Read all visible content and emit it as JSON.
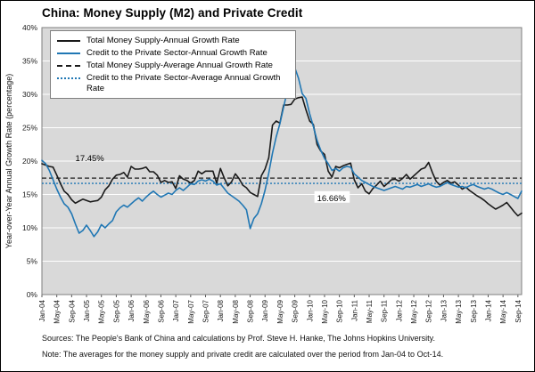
{
  "figure": {
    "footer": {
      "sources": "Sources: The People's Bank of China and calculations by Prof. Steve H. Hanke,  The Johns Hopkins University.",
      "note": "Note: The averages for the money supply and private credit are calculated over the period from Jan-04 to Oct-14."
    }
  },
  "chart_data": {
    "type": "line",
    "title": "China: Money Supply (M2) and Private Credit",
    "ylabel": "Year-over-Year Annual Growth Rate (percentage)",
    "xlabel": "",
    "ylim": [
      0,
      40
    ],
    "ytick_step": 5,
    "ytick_suffix": "%",
    "grid": "horizontal-white-on-gray",
    "legend_position": "top-left",
    "x_tick_step": 4,
    "x_tick_labels": [
      "Jan-04",
      "May-04",
      "Sep-04",
      "Jan-05",
      "May-05",
      "Sep-05",
      "Jan-06",
      "May-06",
      "Sep-06",
      "Jan-07",
      "May-07",
      "Sep-07",
      "Jan-08",
      "May-08",
      "Sep-08",
      "Jan-09",
      "May-09",
      "Sep-09",
      "Jan-10",
      "May-10",
      "Sep-10",
      "Jan-11",
      "May-11",
      "Sep-11",
      "Jan-12",
      "May-12",
      "Sep-12",
      "Jan-13",
      "May-13",
      "Sep-13",
      "Jan-14",
      "May-14",
      "Sep-14"
    ],
    "legend": [
      "Total Money Supply-Annual Growth Rate",
      "Credit to the Private Sector-Annual Growth Rate",
      "Total Money Supply-Average Annual Growth Rate",
      "Credit to the Private Sector-Average Annual Growth Rate"
    ],
    "series": [
      {
        "name": "Total Money Supply-Annual Growth Rate",
        "color": "#1a1a1a",
        "style": "solid",
        "values": [
          19.6,
          19.4,
          19.2,
          19.1,
          17.9,
          16.6,
          15.5,
          15.0,
          14.2,
          13.7,
          14.0,
          14.3,
          14.1,
          13.9,
          14.0,
          14.1,
          14.6,
          15.7,
          16.3,
          17.3,
          17.9,
          18.0,
          18.3,
          17.6,
          19.2,
          18.8,
          18.8,
          18.9,
          19.1,
          18.4,
          18.4,
          17.9,
          16.8,
          17.1,
          16.8,
          16.9,
          15.9,
          17.8,
          17.3,
          17.1,
          16.7,
          17.1,
          18.5,
          18.1,
          18.5,
          18.5,
          18.5,
          16.7,
          18.9,
          17.5,
          16.3,
          16.9,
          18.1,
          17.4,
          16.4,
          16.0,
          15.3,
          15.0,
          14.7,
          17.8,
          18.8,
          20.5,
          25.4,
          26.0,
          25.7,
          28.4,
          28.4,
          28.5,
          29.3,
          29.5,
          29.6,
          27.7,
          26.0,
          25.5,
          22.5,
          21.5,
          21.0,
          18.5,
          17.6,
          19.2,
          19.0,
          19.3,
          19.5,
          19.7,
          17.2,
          16.0,
          16.6,
          15.5,
          15.1,
          15.9,
          16.4,
          17.0,
          16.2,
          16.7,
          17.2,
          17.3,
          17.0,
          17.4,
          18.0,
          17.3,
          17.8,
          18.3,
          18.8,
          19.0,
          19.8,
          18.3,
          17.0,
          16.4,
          16.8,
          17.1,
          16.7,
          16.9,
          16.4,
          15.8,
          16.1,
          15.6,
          15.2,
          14.8,
          14.5,
          14.1,
          13.6,
          13.2,
          12.8,
          13.1,
          13.4,
          13.8,
          13.1,
          12.4,
          11.8,
          12.2
        ]
      },
      {
        "name": "Credit to the Private Sector-Annual Growth Rate",
        "color": "#2077b4",
        "style": "solid",
        "values": [
          20.1,
          19.6,
          18.6,
          17.2,
          15.8,
          14.6,
          13.6,
          13.1,
          12.1,
          10.6,
          9.2,
          9.6,
          10.4,
          9.6,
          8.7,
          9.4,
          10.5,
          10.0,
          10.6,
          11.1,
          12.4,
          13.0,
          13.4,
          13.1,
          13.6,
          14.1,
          14.5,
          14.0,
          14.6,
          15.1,
          15.5,
          15.0,
          14.6,
          14.9,
          15.2,
          15.0,
          15.6,
          16.0,
          15.6,
          16.1,
          16.6,
          16.5,
          17.0,
          17.2,
          17.0,
          17.3,
          17.0,
          16.4,
          16.6,
          15.9,
          15.2,
          14.8,
          14.4,
          14.0,
          13.4,
          12.7,
          9.9,
          11.4,
          12.1,
          13.6,
          15.6,
          18.2,
          21.2,
          23.6,
          25.6,
          28.1,
          30.6,
          32.1,
          34.0,
          32.4,
          30.1,
          29.4,
          27.1,
          25.2,
          23.1,
          21.6,
          20.4,
          19.6,
          18.6,
          18.9,
          18.5,
          19.0,
          19.2,
          19.1,
          18.1,
          17.6,
          17.1,
          16.8,
          16.5,
          16.2,
          16.0,
          15.8,
          15.6,
          15.8,
          16.0,
          16.2,
          16.0,
          15.8,
          16.2,
          16.1,
          16.3,
          16.5,
          16.2,
          16.4,
          16.6,
          16.3,
          16.1,
          16.2,
          16.5,
          16.8,
          16.5,
          16.3,
          16.1,
          16.2,
          16.0,
          16.3,
          16.5,
          16.2,
          16.0,
          15.8,
          16.0,
          15.8,
          15.5,
          15.2,
          15.0,
          15.3,
          15.0,
          14.7,
          14.4,
          15.5
        ]
      }
    ],
    "average_lines": [
      {
        "name": "Total Money Supply-Average Annual Growth Rate",
        "value": 17.45,
        "color": "#1a1a1a",
        "style": "dashed"
      },
      {
        "name": "Credit to the Private Sector-Average Annual Growth Rate",
        "value": 16.66,
        "color": "#2077b4",
        "style": "dotted"
      }
    ],
    "annotations": [
      {
        "label": "17.45%",
        "month_index": 9,
        "value": 20.3,
        "boxed": false
      },
      {
        "label": "16.66%",
        "month_index": 74,
        "value": 14.3,
        "boxed": true
      }
    ],
    "colors": {
      "plot_bg": "#d9d9d9",
      "grid": "#ffffff",
      "frame": "#7f7f7f",
      "m2": "#1a1a1a",
      "credit": "#2077b4"
    }
  }
}
